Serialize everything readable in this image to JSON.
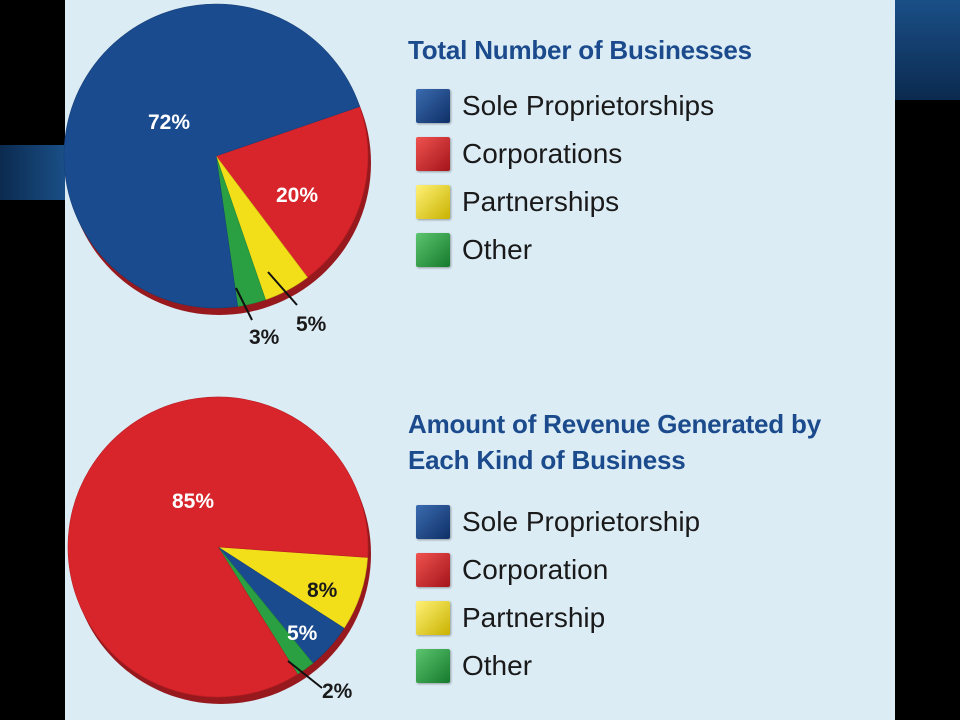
{
  "colors": {
    "sole": "#1a4b8e",
    "corporation": "#d8242b",
    "partnership": "#f2df1a",
    "other": "#2aa043",
    "panel": "#dcecf5",
    "title": "#1b4b8c"
  },
  "chart_data": [
    {
      "type": "pie",
      "title": "Total Number of Businesses",
      "legend_placement": "right",
      "slices": [
        {
          "label": "Sole Proprietorships",
          "value": 72,
          "text": "72%",
          "color": "#1a4b8e"
        },
        {
          "label": "Corporations",
          "value": 20,
          "text": "20%",
          "color": "#d8242b"
        },
        {
          "label": "Partnerships",
          "value": 5,
          "text": "5%",
          "color": "#f2df1a"
        },
        {
          "label": "Other",
          "value": 3,
          "text": "3%",
          "color": "#2aa043"
        }
      ]
    },
    {
      "type": "pie",
      "title": "Amount of Revenue Generated by Each Kind of Business",
      "legend_placement": "right",
      "slices": [
        {
          "label": "Sole Proprietorship",
          "value": 5,
          "text": "5%",
          "color": "#1a4b8e"
        },
        {
          "label": "Corporation",
          "value": 85,
          "text": "85%",
          "color": "#d8242b"
        },
        {
          "label": "Partnership",
          "value": 8,
          "text": "8%",
          "color": "#f2df1a"
        },
        {
          "label": "Other",
          "value": 2,
          "text": "2%",
          "color": "#2aa043"
        }
      ]
    }
  ]
}
